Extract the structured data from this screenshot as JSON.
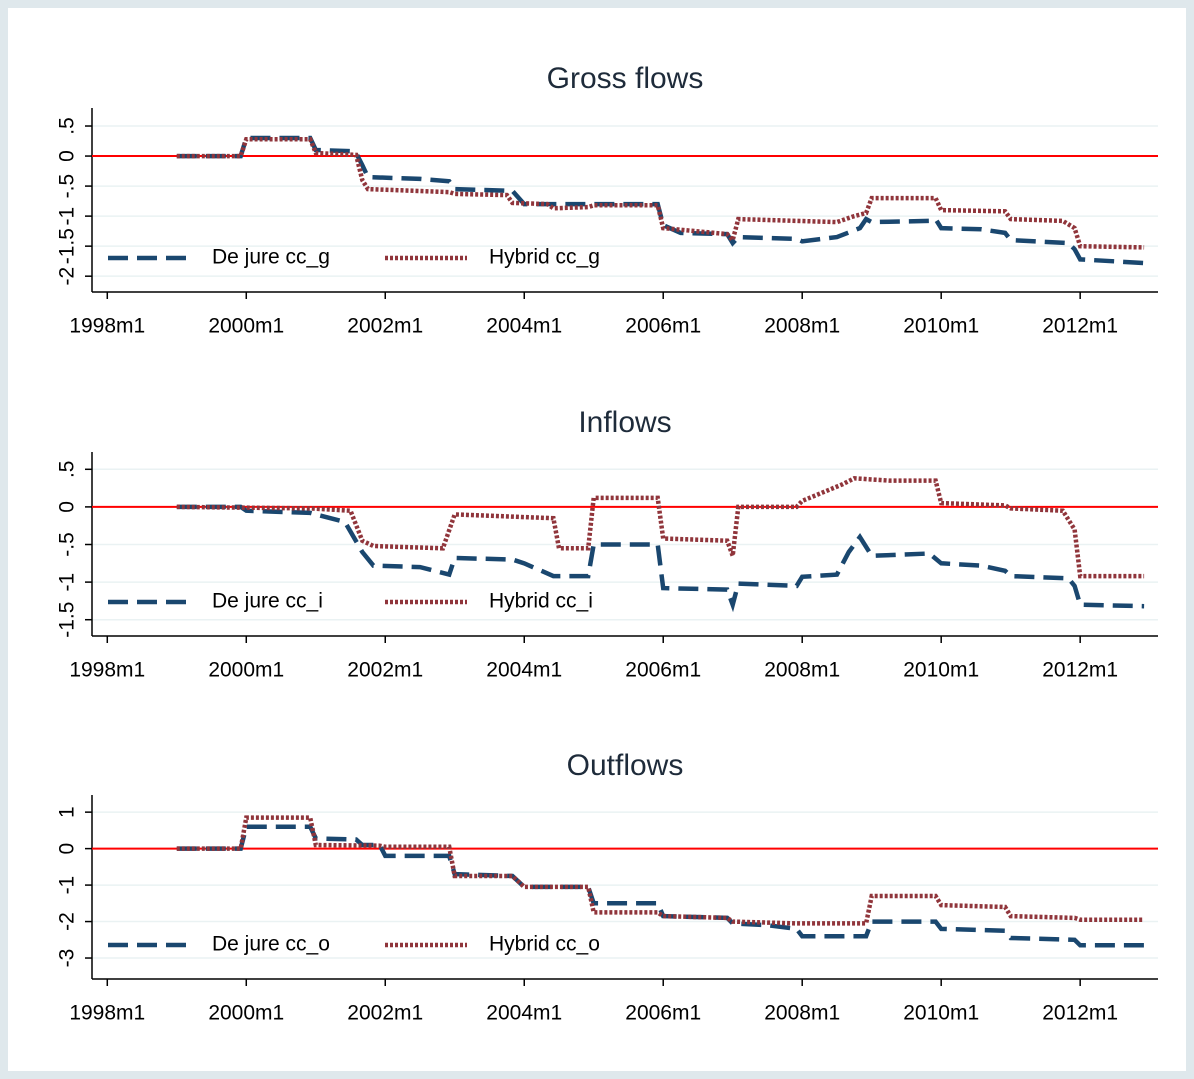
{
  "chart_data": [
    {
      "type": "line",
      "title": "Gross flows",
      "xlim": [
        1997.78,
        2013.12
      ],
      "ylim": [
        -2.23,
        0.8
      ],
      "xticks": [
        {
          "value": 1998,
          "label": "1998m1"
        },
        {
          "value": 2000,
          "label": "2000m1"
        },
        {
          "value": 2002,
          "label": "2002m1"
        },
        {
          "value": 2004,
          "label": "2004m1"
        },
        {
          "value": 2006,
          "label": "2006m1"
        },
        {
          "value": 2008,
          "label": "2008m1"
        },
        {
          "value": 2010,
          "label": "2010m1"
        },
        {
          "value": 2012,
          "label": "2012m1"
        }
      ],
      "yticks": [
        -2,
        -1.5,
        -1,
        {
          "value": -0.5,
          "label": "-.5"
        },
        0,
        {
          "value": 0.5,
          "label": ".5"
        }
      ],
      "grid": true,
      "refline": 0,
      "refline_color": "#ff0000",
      "legend": "bottom-left",
      "series": [
        {
          "name": "De jure cc_g",
          "color": "#1a476f",
          "style": "dashed",
          "x": [
            1999,
            1999.92,
            2000,
            2000.92,
            2001,
            2001.5,
            2001.58,
            2001.67,
            2001.75,
            2002.5,
            2002.92,
            2003,
            2003.83,
            2004,
            2005.92,
            2006,
            2006.25,
            2006.92,
            2007,
            2007.08,
            2007.92,
            2008,
            2008.5,
            2008.83,
            2008.92,
            2009,
            2009.83,
            2009.92,
            2010,
            2010.58,
            2010.92,
            2011,
            2011.83,
            2011.92,
            2012,
            2012.92
          ],
          "values": [
            0,
            0,
            0.3,
            0.3,
            0.1,
            0.08,
            0.05,
            -0.15,
            -0.35,
            -0.38,
            -0.42,
            -0.55,
            -0.58,
            -0.8,
            -0.8,
            -1.15,
            -1.28,
            -1.3,
            -1.45,
            -1.35,
            -1.38,
            -1.42,
            -1.35,
            -1.2,
            -1.05,
            -1.1,
            -1.08,
            -1.05,
            -1.2,
            -1.22,
            -1.28,
            -1.4,
            -1.45,
            -1.55,
            -1.72,
            -1.78
          ]
        },
        {
          "name": "Hybrid cc_g",
          "color": "#90353b",
          "style": "dotted",
          "x": [
            1999,
            1999.92,
            2000,
            2000.92,
            2001,
            2001.58,
            2001.67,
            2001.75,
            2002.92,
            2003,
            2003.75,
            2003.83,
            2004.33,
            2004.42,
            2004.92,
            2005,
            2005.92,
            2006,
            2006.92,
            2007,
            2007.08,
            2008.5,
            2008.75,
            2008.92,
            2009,
            2009.92,
            2010,
            2010.92,
            2011,
            2011.75,
            2011.92,
            2012,
            2012.92
          ],
          "values": [
            0,
            0,
            0.28,
            0.28,
            0.05,
            0.02,
            -0.4,
            -0.55,
            -0.6,
            -0.63,
            -0.65,
            -0.78,
            -0.8,
            -0.87,
            -0.85,
            -0.82,
            -0.82,
            -1.2,
            -1.3,
            -1.4,
            -1.05,
            -1.1,
            -1.0,
            -0.95,
            -0.7,
            -0.7,
            -0.9,
            -0.92,
            -1.05,
            -1.08,
            -1.2,
            -1.5,
            -1.52
          ]
        }
      ]
    },
    {
      "type": "line",
      "title": "Inflows",
      "xlim": [
        1997.78,
        2013.12
      ],
      "ylim": [
        -1.69,
        0.73
      ],
      "xticks": [
        {
          "value": 1998,
          "label": "1998m1"
        },
        {
          "value": 2000,
          "label": "2000m1"
        },
        {
          "value": 2002,
          "label": "2002m1"
        },
        {
          "value": 2004,
          "label": "2004m1"
        },
        {
          "value": 2006,
          "label": "2006m1"
        },
        {
          "value": 2008,
          "label": "2008m1"
        },
        {
          "value": 2010,
          "label": "2010m1"
        },
        {
          "value": 2012,
          "label": "2012m1"
        }
      ],
      "yticks": [
        -1.5,
        -1,
        {
          "value": -0.5,
          "label": "-.5"
        },
        0,
        {
          "value": 0.5,
          "label": ".5"
        }
      ],
      "grid": true,
      "refline": 0,
      "refline_color": "#ff0000",
      "legend": "bottom-left",
      "series": [
        {
          "name": "De jure cc_i",
          "color": "#1a476f",
          "style": "dashed",
          "x": [
            1999,
            1999.92,
            2000,
            2000.92,
            2001,
            2001.42,
            2001.67,
            2001.83,
            2002.5,
            2002.92,
            2003,
            2003.83,
            2004,
            2004.42,
            2004.92,
            2005,
            2005.92,
            2006,
            2006.92,
            2007,
            2007.08,
            2007.92,
            2008,
            2008.5,
            2008.67,
            2008.83,
            2009,
            2009.83,
            2010,
            2010.58,
            2010.92,
            2011,
            2011.83,
            2011.92,
            2012,
            2012.92
          ],
          "values": [
            0,
            0,
            -0.05,
            -0.08,
            -0.1,
            -0.2,
            -0.6,
            -0.78,
            -0.8,
            -0.9,
            -0.68,
            -0.7,
            -0.75,
            -0.92,
            -0.92,
            -0.5,
            -0.5,
            -1.08,
            -1.1,
            -1.3,
            -1.02,
            -1.05,
            -0.93,
            -0.9,
            -0.6,
            -0.4,
            -0.65,
            -0.62,
            -0.75,
            -0.78,
            -0.85,
            -0.92,
            -0.95,
            -1.05,
            -1.3,
            -1.32
          ]
        },
        {
          "name": "Hybrid cc_i",
          "color": "#90353b",
          "style": "dotted",
          "x": [
            1999,
            2000.92,
            2001.5,
            2001.67,
            2001.83,
            2002.83,
            2003,
            2004.42,
            2004.5,
            2004.92,
            2005,
            2005.92,
            2006,
            2006.92,
            2007,
            2007.08,
            2007.92,
            2008,
            2008.58,
            2008.75,
            2009.25,
            2009.92,
            2010,
            2010.92,
            2011,
            2011.75,
            2011.92,
            2012,
            2012.92
          ],
          "values": [
            0,
            -0.02,
            -0.05,
            -0.45,
            -0.52,
            -0.55,
            -0.1,
            -0.15,
            -0.55,
            -0.55,
            0.12,
            0.12,
            -0.42,
            -0.45,
            -0.65,
            0,
            0,
            0.08,
            0.3,
            0.38,
            0.35,
            0.35,
            0.05,
            0.02,
            -0.02,
            -0.05,
            -0.3,
            -0.92,
            -0.92
          ]
        }
      ]
    },
    {
      "type": "line",
      "title": "Outflows",
      "xlim": [
        1997.78,
        2013.12
      ],
      "ylim": [
        -3.52,
        1.47
      ],
      "xticks": [
        {
          "value": 1998,
          "label": "1998m1"
        },
        {
          "value": 2000,
          "label": "2000m1"
        },
        {
          "value": 2002,
          "label": "2002m1"
        },
        {
          "value": 2004,
          "label": "2004m1"
        },
        {
          "value": 2006,
          "label": "2006m1"
        },
        {
          "value": 2008,
          "label": "2008m1"
        },
        {
          "value": 2010,
          "label": "2010m1"
        },
        {
          "value": 2012,
          "label": "2012m1"
        }
      ],
      "yticks": [
        -3,
        -2,
        -1,
        0,
        1
      ],
      "grid": true,
      "refline": 0,
      "refline_color": "#ff0000",
      "legend": "bottom-left",
      "series": [
        {
          "name": "De jure cc_o",
          "color": "#1a476f",
          "style": "dashed",
          "x": [
            1999,
            1999.92,
            2000,
            2000.92,
            2001,
            2001.58,
            2001.67,
            2001.92,
            2002,
            2002.92,
            2003,
            2003.83,
            2004,
            2004.92,
            2005,
            2005.92,
            2006,
            2006.92,
            2007,
            2007.5,
            2007.92,
            2008,
            2008.92,
            2009,
            2009.92,
            2010,
            2010.92,
            2011,
            2011.92,
            2012,
            2012.92
          ],
          "values": [
            0,
            0,
            0.6,
            0.6,
            0.28,
            0.25,
            0.1,
            0.1,
            -0.2,
            -0.2,
            -0.7,
            -0.75,
            -1.05,
            -1.05,
            -1.5,
            -1.5,
            -1.85,
            -1.9,
            -2.05,
            -2.1,
            -2.2,
            -2.4,
            -2.4,
            -2.0,
            -2.0,
            -2.2,
            -2.25,
            -2.45,
            -2.5,
            -2.65,
            -2.65
          ]
        },
        {
          "name": "Hybrid cc_o",
          "color": "#90353b",
          "style": "dotted",
          "x": [
            1999,
            1999.92,
            2000,
            2000.92,
            2001,
            2001.92,
            2002,
            2002.92,
            2003,
            2003.83,
            2004,
            2004.92,
            2005,
            2005.92,
            2006,
            2006.92,
            2007,
            2007.92,
            2008,
            2008.92,
            2009,
            2009.92,
            2010,
            2010.92,
            2011,
            2011.92,
            2012,
            2012.92
          ],
          "values": [
            0,
            0,
            0.85,
            0.85,
            0.1,
            0.08,
            0.05,
            0.05,
            -0.75,
            -0.75,
            -1.05,
            -1.05,
            -1.75,
            -1.75,
            -1.85,
            -1.9,
            -2.0,
            -2.05,
            -2.05,
            -2.05,
            -1.3,
            -1.3,
            -1.55,
            -1.6,
            -1.85,
            -1.9,
            -1.95,
            -1.95
          ]
        }
      ]
    }
  ]
}
